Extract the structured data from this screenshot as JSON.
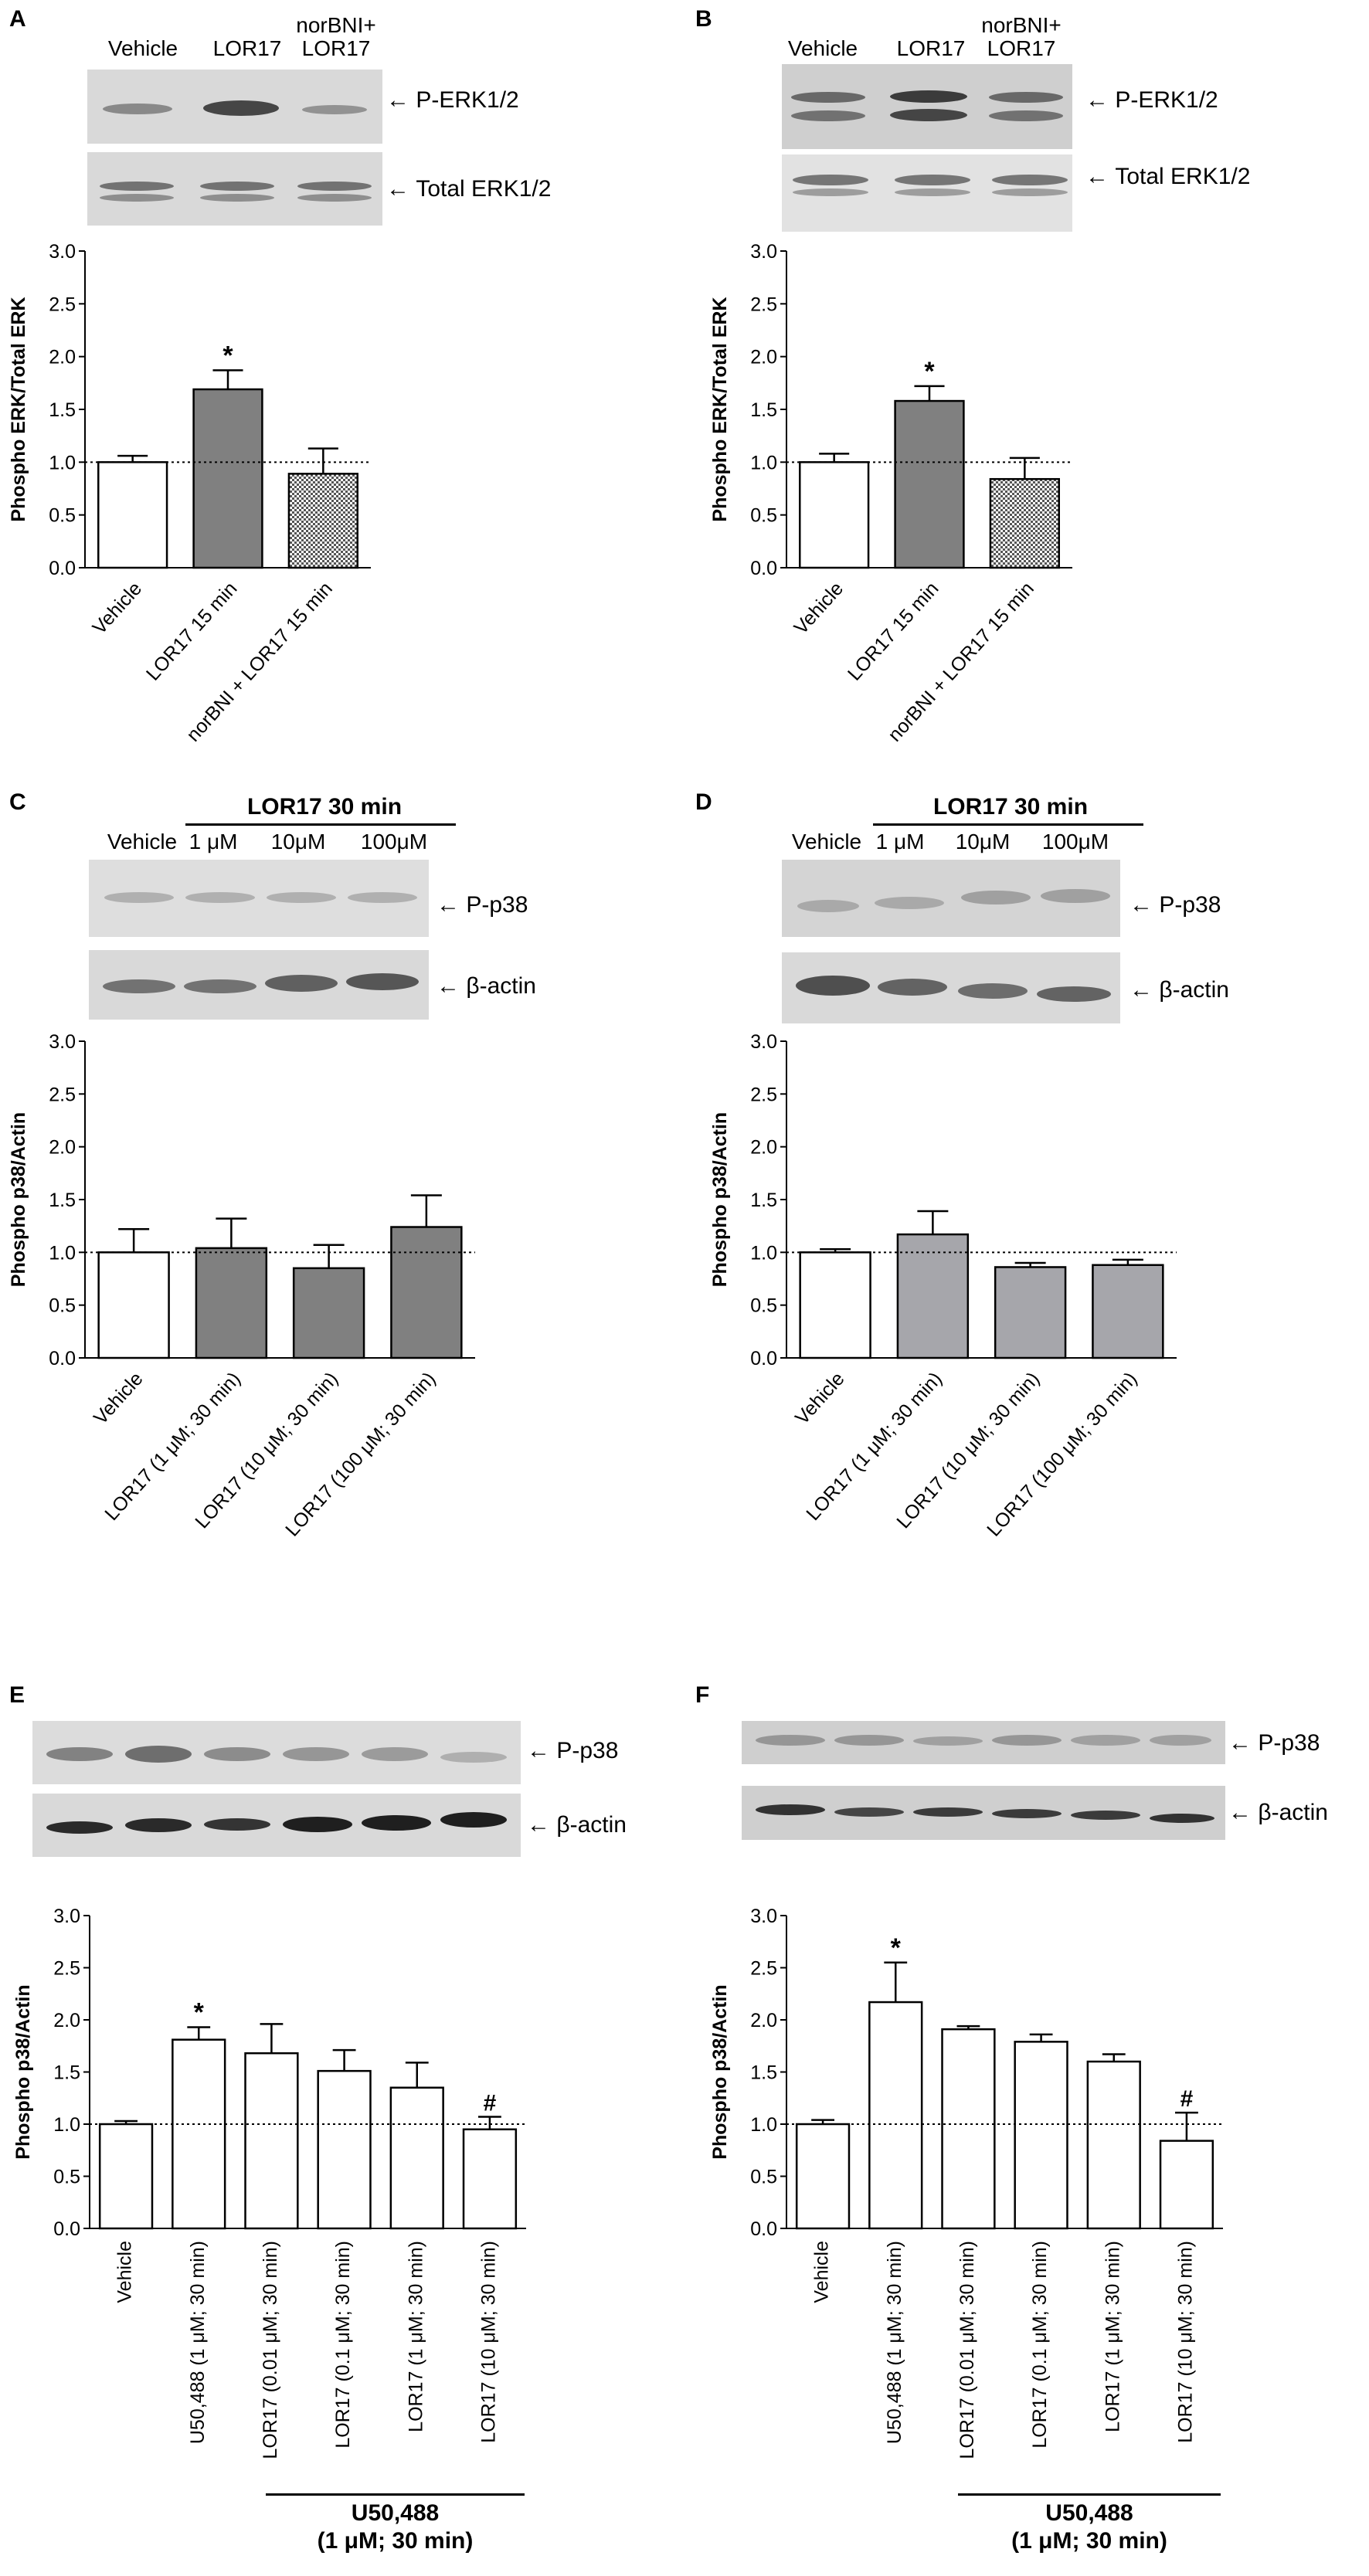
{
  "colors": {
    "white": "#ffffff",
    "dark_gray": "#808080",
    "light_gray": "#a6a6ab",
    "checker": "#555555",
    "axis": "#000000"
  },
  "panels": {
    "A": {
      "label": "A",
      "lanes": [
        "Vehicle",
        "LOR17",
        "norBNI+\nLOR17"
      ],
      "blots": [
        "P-ERK1/2",
        "Total ERK1/2"
      ],
      "chart_data": {
        "type": "bar",
        "ylabel": "Phospho ERK/Total ERK",
        "categories": [
          "Vehicle",
          "LOR17 15 min",
          "norBNI + LOR17 15 min"
        ],
        "values": [
          1.0,
          1.69,
          0.89
        ],
        "errors": [
          0.06,
          0.18,
          0.24
        ],
        "fills": [
          "white",
          "dark_gray",
          "checker"
        ],
        "annotations": [
          "",
          "*",
          ""
        ],
        "ylim": [
          0,
          3.0
        ],
        "yticks": [
          "0.0",
          "0.5",
          "1.0",
          "1.5",
          "2.0",
          "2.5",
          "3.0"
        ],
        "reference_line": 1.0
      }
    },
    "B": {
      "label": "B",
      "lanes": [
        "Vehicle",
        "LOR17",
        "norBNI+\nLOR17"
      ],
      "blots": [
        "P-ERK1/2",
        "Total ERK1/2"
      ],
      "chart_data": {
        "type": "bar",
        "ylabel": "Phospho ERK/Total ERK",
        "categories": [
          "Vehicle",
          "LOR17 15 min",
          "norBNI + LOR17 15 min"
        ],
        "values": [
          1.0,
          1.58,
          0.84
        ],
        "errors": [
          0.08,
          0.14,
          0.2
        ],
        "fills": [
          "white",
          "dark_gray",
          "checker"
        ],
        "annotations": [
          "",
          "*",
          ""
        ],
        "ylim": [
          0,
          3.0
        ],
        "yticks": [
          "0.0",
          "0.5",
          "1.0",
          "1.5",
          "2.0",
          "2.5",
          "3.0"
        ],
        "reference_line": 1.0
      }
    },
    "C": {
      "label": "C",
      "group_title": "LOR17 30 min",
      "lanes": [
        "Vehicle",
        "1 μM",
        "10μM",
        "100μM"
      ],
      "blots": [
        "P-p38",
        "β-actin"
      ],
      "chart_data": {
        "type": "bar",
        "ylabel": "Phospho p38/Actin",
        "categories": [
          "Vehicle",
          "LOR17 (1 μM; 30 min)",
          "LOR17 (10 μM; 30 min)",
          "LOR17 (100 μM; 30 min)"
        ],
        "values": [
          1.0,
          1.04,
          0.85,
          1.24
        ],
        "errors": [
          0.22,
          0.28,
          0.22,
          0.3
        ],
        "fills": [
          "white",
          "dark_gray",
          "dark_gray",
          "dark_gray"
        ],
        "annotations": [
          "",
          "",
          "",
          ""
        ],
        "ylim": [
          0,
          3.0
        ],
        "yticks": [
          "0.0",
          "0.5",
          "1.0",
          "1.5",
          "2.0",
          "2.5",
          "3.0"
        ],
        "reference_line": 1.0
      }
    },
    "D": {
      "label": "D",
      "group_title": "LOR17 30 min",
      "lanes": [
        "Vehicle",
        "1 μM",
        "10μM",
        "100μM"
      ],
      "blots": [
        "P-p38",
        "β-actin"
      ],
      "chart_data": {
        "type": "bar",
        "ylabel": "Phospho p38/Actin",
        "categories": [
          "Vehicle",
          "LOR17 (1 μM; 30 min)",
          "LOR17 (10 μM; 30 min)",
          "LOR17 (100 μM; 30 min)"
        ],
        "values": [
          1.0,
          1.17,
          0.86,
          0.88
        ],
        "errors": [
          0.03,
          0.22,
          0.04,
          0.05
        ],
        "fills": [
          "white",
          "light_gray",
          "light_gray",
          "light_gray"
        ],
        "annotations": [
          "",
          "",
          "",
          ""
        ],
        "ylim": [
          0,
          3.0
        ],
        "yticks": [
          "0.0",
          "0.5",
          "1.0",
          "1.5",
          "2.0",
          "2.5",
          "3.0"
        ],
        "reference_line": 1.0
      }
    },
    "E": {
      "label": "E",
      "blots": [
        "P-p38",
        "β-actin"
      ],
      "group_title_line1": "U50,488",
      "group_title_line2": "(1 μM; 30 min)",
      "chart_data": {
        "type": "bar",
        "ylabel": "Phospho p38/Actin",
        "categories": [
          "Vehicle",
          "U50,488 (1 μM; 30 min)",
          "LOR17 (0.01 μM; 30 min)",
          "LOR17 (0.1 μM; 30 min)",
          "LOR17 (1 μM; 30 min)",
          "LOR17 (10 μM; 30 min)"
        ],
        "values": [
          1.0,
          1.81,
          1.68,
          1.51,
          1.35,
          0.95
        ],
        "errors": [
          0.03,
          0.12,
          0.28,
          0.2,
          0.24,
          0.12
        ],
        "fills": [
          "white",
          "white",
          "white",
          "white",
          "white",
          "white"
        ],
        "annotations": [
          "",
          "*",
          "",
          "",
          "",
          "#"
        ],
        "ylim": [
          0,
          3.0
        ],
        "yticks": [
          "0.0",
          "0.5",
          "1.0",
          "1.5",
          "2.0",
          "2.5",
          "3.0"
        ],
        "reference_line": 1.0
      }
    },
    "F": {
      "label": "F",
      "blots": [
        "P-p38",
        "β-actin"
      ],
      "group_title_line1": "U50,488",
      "group_title_line2": "(1 μM; 30 min)",
      "chart_data": {
        "type": "bar",
        "ylabel": "Phospho p38/Actin",
        "categories": [
          "Vehicle",
          "U50,488 (1 μM; 30 min)",
          "LOR17 (0.01 μM; 30 min)",
          "LOR17 (0.1 μM; 30 min)",
          "LOR17 (1 μM; 30 min)",
          "LOR17 (10 μM; 30 min)"
        ],
        "values": [
          1.0,
          2.17,
          1.91,
          1.79,
          1.6,
          0.84
        ],
        "errors": [
          0.04,
          0.38,
          0.03,
          0.07,
          0.07,
          0.27
        ],
        "fills": [
          "white",
          "white",
          "white",
          "white",
          "white",
          "white"
        ],
        "annotations": [
          "",
          "*",
          "",
          "",
          "",
          "#"
        ],
        "ylim": [
          0,
          3.0
        ],
        "yticks": [
          "0.0",
          "0.5",
          "1.0",
          "1.5",
          "2.0",
          "2.5",
          "3.0"
        ],
        "reference_line": 1.0
      }
    }
  }
}
